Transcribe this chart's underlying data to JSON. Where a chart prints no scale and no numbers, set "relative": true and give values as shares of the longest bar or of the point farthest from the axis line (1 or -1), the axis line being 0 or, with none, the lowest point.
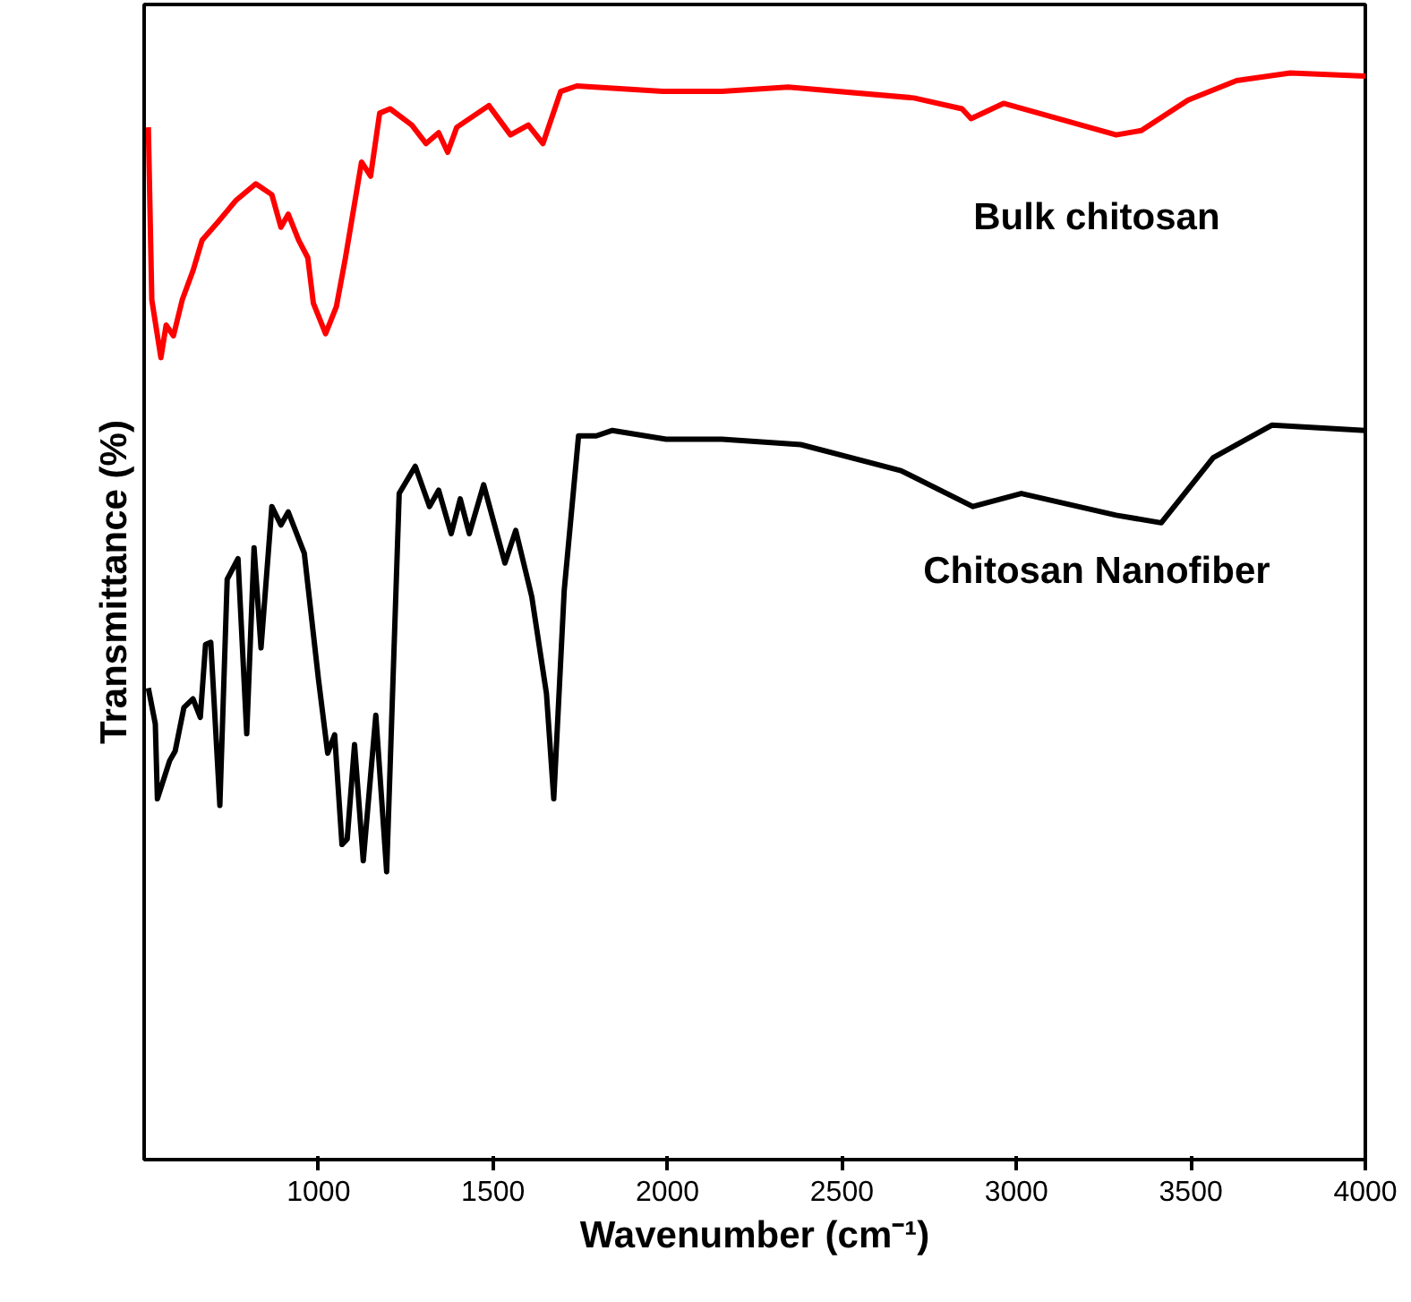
{
  "chart_data": {
    "type": "line",
    "relative": true,
    "xlabel": "Wavenumber (cm⁻¹)",
    "ylabel": "Transmittance (%)",
    "xlim": [
      500,
      4000
    ],
    "xticks": [
      1000,
      1500,
      2000,
      2500,
      3000,
      3500,
      4000
    ],
    "grid": false,
    "legend": false,
    "line_style": "solid",
    "marker": "none",
    "series": [
      {
        "name": "Bulk chitosan",
        "color": "#ff0000",
        "x": [
          512,
          522,
          548,
          563,
          584,
          609,
          640,
          666,
          712,
          764,
          820,
          866,
          892,
          913,
          943,
          969,
          985,
          1020,
          1051,
          1077,
          1123,
          1149,
          1175,
          1205,
          1267,
          1308,
          1344,
          1370,
          1396,
          1488,
          1550,
          1601,
          1643,
          1694,
          1740,
          1986,
          2156,
          2346,
          2706,
          2844,
          2870,
          2963,
          3286,
          3358,
          3492,
          3631,
          3785,
          4000
        ],
        "values": [
          0.95,
          0.791,
          0.738,
          0.768,
          0.758,
          0.791,
          0.818,
          0.846,
          0.863,
          0.883,
          0.898,
          0.888,
          0.858,
          0.87,
          0.846,
          0.83,
          0.788,
          0.76,
          0.785,
          0.83,
          0.918,
          0.905,
          0.963,
          0.967,
          0.952,
          0.935,
          0.945,
          0.927,
          0.95,
          0.97,
          0.943,
          0.952,
          0.935,
          0.983,
          0.988,
          0.983,
          0.983,
          0.987,
          0.977,
          0.967,
          0.958,
          0.972,
          0.943,
          0.947,
          0.975,
          0.993,
          1.0,
          0.997
        ]
      },
      {
        "name": "Chitosan Nanofiber",
        "color": "#000000",
        "x": [
          512,
          532,
          538,
          573,
          589,
          614,
          640,
          661,
          676,
          691,
          717,
          738,
          769,
          794,
          815,
          835,
          866,
          892,
          913,
          959,
          1000,
          1026,
          1046,
          1067,
          1082,
          1103,
          1128,
          1164,
          1195,
          1231,
          1277,
          1318,
          1344,
          1380,
          1406,
          1432,
          1473,
          1534,
          1565,
          1611,
          1653,
          1674,
          1704,
          1745,
          1796,
          1842,
          1996,
          2156,
          2382,
          2669,
          2875,
          3014,
          3286,
          3415,
          3564,
          3733,
          4000
        ],
        "values": [
          0.434,
          0.401,
          0.332,
          0.367,
          0.376,
          0.416,
          0.424,
          0.407,
          0.474,
          0.476,
          0.326,
          0.534,
          0.553,
          0.392,
          0.563,
          0.471,
          0.601,
          0.584,
          0.596,
          0.558,
          0.441,
          0.374,
          0.391,
          0.29,
          0.295,
          0.382,
          0.275,
          0.409,
          0.265,
          0.613,
          0.638,
          0.601,
          0.616,
          0.576,
          0.608,
          0.576,
          0.621,
          0.549,
          0.579,
          0.518,
          0.429,
          0.332,
          0.524,
          0.666,
          0.666,
          0.671,
          0.663,
          0.663,
          0.658,
          0.634,
          0.601,
          0.613,
          0.593,
          0.586,
          0.646,
          0.676,
          0.671
        ]
      }
    ]
  }
}
